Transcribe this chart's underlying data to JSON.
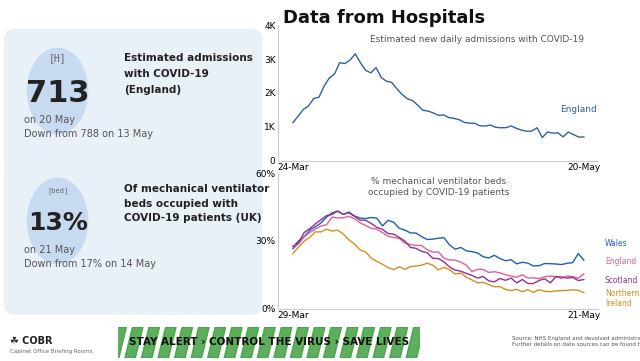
{
  "title": "Data from Hospitals",
  "bg_color": "#ffffff",
  "panel_bg": "#e8f0f8",
  "circle_bg": "#c8daf0",
  "stat1_value": "713",
  "stat1_label1": "Estimated admissions",
  "stat1_label2": "with COVID-19",
  "stat1_label3": "(England)",
  "stat1_sub1": "on 20 May",
  "stat1_sub2": "Down from 788 on 13 May",
  "stat2_value": "13%",
  "stat2_label1": "Of mechanical ventilator",
  "stat2_label2": "beds occupied with",
  "stat2_label3": "COVID-19 patients (UK)",
  "stat2_sub1": "on 21 May",
  "stat2_sub2": "Down from 17% on 14 May",
  "chart1_title": "Estimated new daily admissions with COVID-19",
  "chart1_xlabel_left": "24-Mar",
  "chart1_xlabel_right": "20-May",
  "chart1_ylim": [
    0,
    4000
  ],
  "chart1_yticks": [
    0,
    1000,
    2000,
    3000,
    4000
  ],
  "chart1_ytick_labels": [
    "0",
    "1K",
    "2K",
    "3K",
    "4K"
  ],
  "chart1_label": "England",
  "chart1_color": "#3060a0",
  "chart2_title": "% mechanical ventilator beds\noccupied by COVID-19 patients",
  "chart2_xlabel_left": "29-Mar",
  "chart2_xlabel_right": "21-May",
  "chart2_ylim": [
    0,
    0.6
  ],
  "chart2_yticks": [
    0,
    0.3,
    0.6
  ],
  "chart2_ytick_labels": [
    "0%",
    "30%",
    "60%"
  ],
  "wales_color": "#2060b0",
  "england2_color": "#e06090",
  "scotland_color": "#903090",
  "ni_color": "#d09020",
  "banner_color": "#f0e030",
  "banner_text": "STAY ALERT › CONTROL THE VIRUS › SAVE LIVES",
  "banner_stripe_color": "#40a040",
  "source_text": "Source: NHS England and devolved administrations.\nFurther details on data sources can be found here:",
  "cobr_text": "COBR"
}
